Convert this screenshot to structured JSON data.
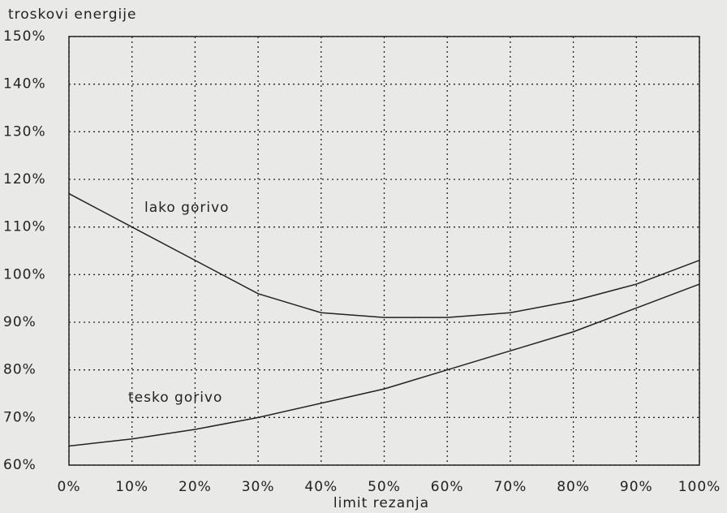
{
  "chart_data": {
    "type": "line",
    "ylabel": "troskovi energije",
    "xlabel": "limit rezanja",
    "annotations": [
      "lako gorivo",
      "tesko gorivo"
    ],
    "x": [
      0,
      10,
      20,
      30,
      40,
      50,
      60,
      70,
      80,
      90,
      100
    ],
    "series": [
      {
        "name": "lako gorivo",
        "color": "#222222",
        "values": [
          117,
          110,
          103,
          96,
          92,
          91,
          91,
          92,
          94.5,
          98,
          103
        ]
      },
      {
        "name": "tesko gorivo",
        "color": "#222222",
        "values": [
          64,
          65.5,
          67.5,
          70,
          73,
          76,
          80,
          84,
          88,
          93,
          98
        ]
      }
    ],
    "xlim": [
      0,
      100
    ],
    "ylim": [
      60,
      150
    ],
    "xticks": [
      {
        "value": 0,
        "label": "0%"
      },
      {
        "value": 10,
        "label": "10%"
      },
      {
        "value": 20,
        "label": "20%"
      },
      {
        "value": 30,
        "label": "30%"
      },
      {
        "value": 40,
        "label": "40%"
      },
      {
        "value": 50,
        "label": "50%"
      },
      {
        "value": 60,
        "label": "60%"
      },
      {
        "value": 70,
        "label": "70%"
      },
      {
        "value": 80,
        "label": "80%"
      },
      {
        "value": 90,
        "label": "90%"
      },
      {
        "value": 100,
        "label": "100%"
      }
    ],
    "yticks": [
      {
        "value": 60,
        "label": "60%"
      },
      {
        "value": 70,
        "label": "70%"
      },
      {
        "value": 80,
        "label": "80%"
      },
      {
        "value": 90,
        "label": "90%"
      },
      {
        "value": 100,
        "label": "100%"
      },
      {
        "value": 110,
        "label": "110%"
      },
      {
        "value": 120,
        "label": "120%"
      },
      {
        "value": 130,
        "label": "130%"
      },
      {
        "value": 140,
        "label": "140%"
      },
      {
        "value": 150,
        "label": "150%"
      }
    ],
    "grid": true
  }
}
